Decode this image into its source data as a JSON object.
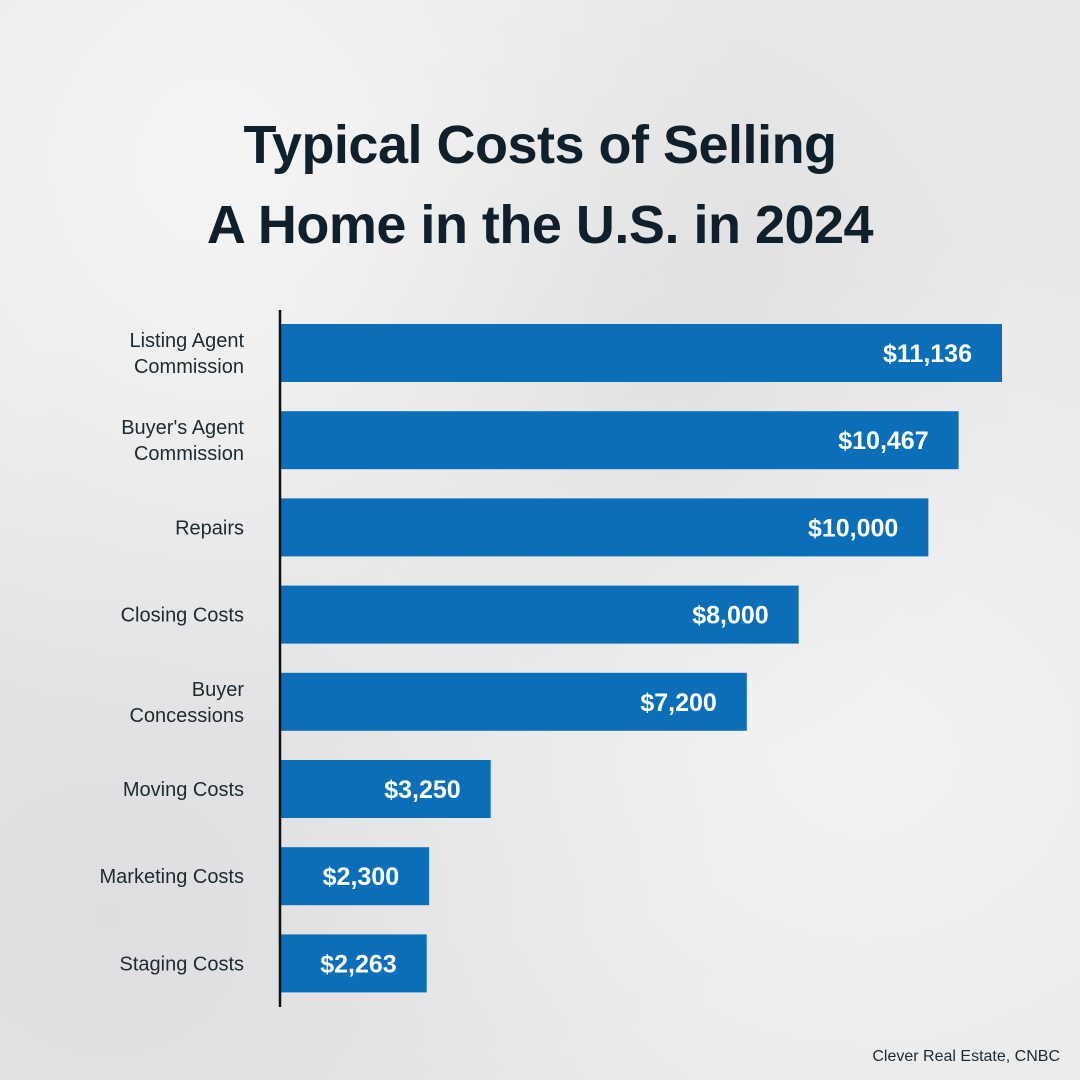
{
  "title": {
    "line1": "Typical Costs of Selling",
    "line2": "A Home in the U.S. in 2024"
  },
  "source": "Clever Real Estate, CNBC",
  "colors": {
    "bar": "#0a6fb8",
    "axis": "#111111",
    "label_text": "#1d2a33",
    "value_text": "#ffffff"
  },
  "chart_data": {
    "type": "bar",
    "orientation": "horizontal",
    "title": "Typical Costs of Selling A Home in the U.S. in 2024",
    "categories": [
      [
        "Listing Agent",
        "Commission"
      ],
      [
        "Buyer's Agent",
        "Commission"
      ],
      [
        "Repairs"
      ],
      [
        "Closing Costs"
      ],
      [
        "Buyer",
        "Concessions"
      ],
      [
        "Moving Costs"
      ],
      [
        "Marketing Costs"
      ],
      [
        "Staging Costs"
      ]
    ],
    "values": [
      11136,
      10467,
      10000,
      8000,
      7200,
      3250,
      2300,
      2263
    ],
    "data_labels": [
      "$11,136",
      "$10,467",
      "$10,000",
      "$8,000",
      "$7,200",
      "$3,250",
      "$2,300",
      "$2,263"
    ],
    "xlim": [
      0,
      11136
    ],
    "grid": false,
    "legend": "none"
  }
}
